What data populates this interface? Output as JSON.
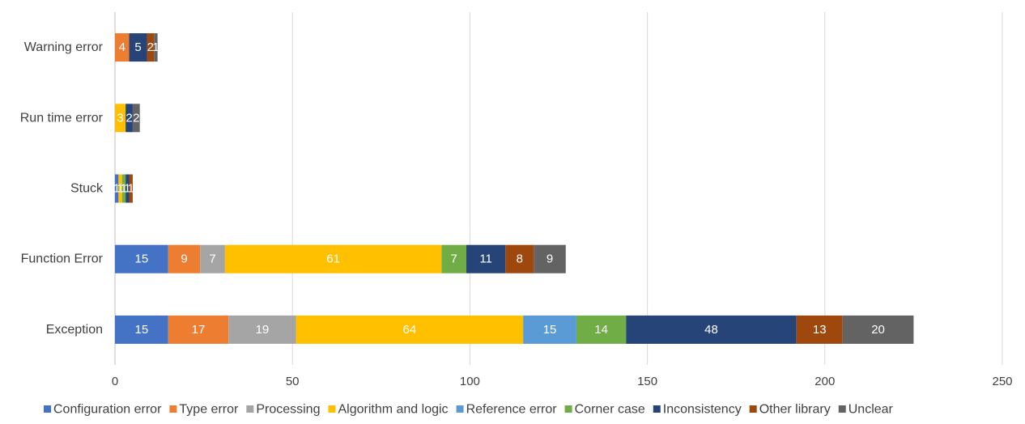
{
  "chart_data": {
    "type": "bar",
    "orientation": "horizontal",
    "stacked": true,
    "categories": [
      "Warning error",
      "Run time error",
      "Stuck",
      "Function Error",
      "Exception"
    ],
    "xlim": [
      0,
      250
    ],
    "xticks": [
      0,
      50,
      100,
      150,
      200,
      250
    ],
    "grid": true,
    "legend": "bottom",
    "series": [
      {
        "name": "Configuration error",
        "color": "#4472c4",
        "values": [
          0,
          0,
          1,
          15,
          15
        ]
      },
      {
        "name": "Type error",
        "color": "#ed7d31",
        "values": [
          4,
          0,
          0,
          9,
          17
        ]
      },
      {
        "name": "Processing",
        "color": "#a5a5a5",
        "values": [
          0,
          0,
          0,
          7,
          19
        ]
      },
      {
        "name": "Algorithm and logic",
        "color": "#ffc000",
        "values": [
          0,
          3,
          1,
          61,
          64
        ]
      },
      {
        "name": "Reference error",
        "color": "#5b9bd5",
        "values": [
          0,
          0,
          0,
          0,
          15
        ]
      },
      {
        "name": "Corner case",
        "color": "#70ad47",
        "values": [
          0,
          0,
          1,
          7,
          14
        ]
      },
      {
        "name": "Inconsistency",
        "color": "#264478",
        "values": [
          5,
          2,
          1,
          11,
          48
        ]
      },
      {
        "name": "Other library",
        "color": "#9e480e",
        "values": [
          2,
          0,
          1,
          8,
          13
        ]
      },
      {
        "name": "Unclear",
        "color": "#636363",
        "values": [
          1,
          2,
          0,
          9,
          20
        ]
      }
    ]
  }
}
